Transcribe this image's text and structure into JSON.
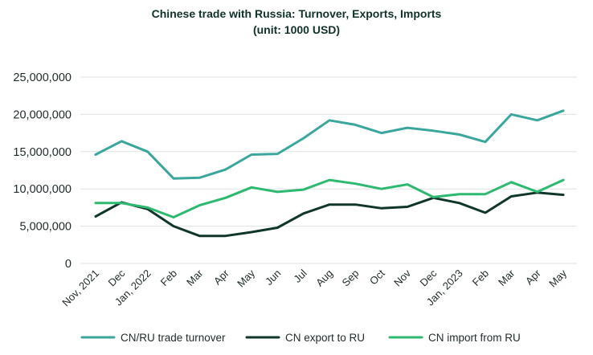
{
  "chart_data": {
    "type": "line",
    "title": "Chinese trade with Russia: Turnover, Exports, Imports",
    "subtitle": "(unit: 1000 USD)",
    "xlabel": "",
    "ylabel": "",
    "ylim": [
      0,
      25000000
    ],
    "yticks": [
      {
        "value": 0,
        "label": "0"
      },
      {
        "value": 5000000,
        "label": "5,000,000"
      },
      {
        "value": 10000000,
        "label": "10,000,000"
      },
      {
        "value": 15000000,
        "label": "15,000,000"
      },
      {
        "value": 20000000,
        "label": "20,000,000"
      },
      {
        "value": 25000000,
        "label": "25,000,000"
      }
    ],
    "grid": true,
    "legend_position": "bottom",
    "categories": [
      "Nov, 2021",
      "Dec",
      "Jan, 2022",
      "Feb",
      "Mar",
      "Apr",
      "May",
      "Jun",
      "Jul",
      "Aug",
      "Sep",
      "Oct",
      "Nov",
      "Dec",
      "Jan, 2023",
      "Feb",
      "Mar",
      "Apr",
      "May"
    ],
    "series": [
      {
        "name": "CN/RU trade turnover",
        "color": "#3aa69c",
        "values": [
          14600000,
          16400000,
          15000000,
          11400000,
          11500000,
          12600000,
          14600000,
          14700000,
          16800000,
          19200000,
          18600000,
          17500000,
          18200000,
          17800000,
          17300000,
          16300000,
          20000000,
          19200000,
          20500000
        ]
      },
      {
        "name": "CN export to RU",
        "color": "#10362c",
        "values": [
          6300000,
          8200000,
          7300000,
          5000000,
          3700000,
          3700000,
          4200000,
          4800000,
          6700000,
          7900000,
          7900000,
          7400000,
          7600000,
          8800000,
          8100000,
          6800000,
          9000000,
          9500000,
          9200000
        ]
      },
      {
        "name": "CN import from RU",
        "color": "#2db96f",
        "values": [
          8100000,
          8100000,
          7500000,
          6200000,
          7800000,
          8800000,
          10200000,
          9600000,
          9900000,
          11200000,
          10700000,
          10000000,
          10600000,
          8900000,
          9300000,
          9300000,
          10900000,
          9600000,
          11200000
        ]
      }
    ]
  }
}
